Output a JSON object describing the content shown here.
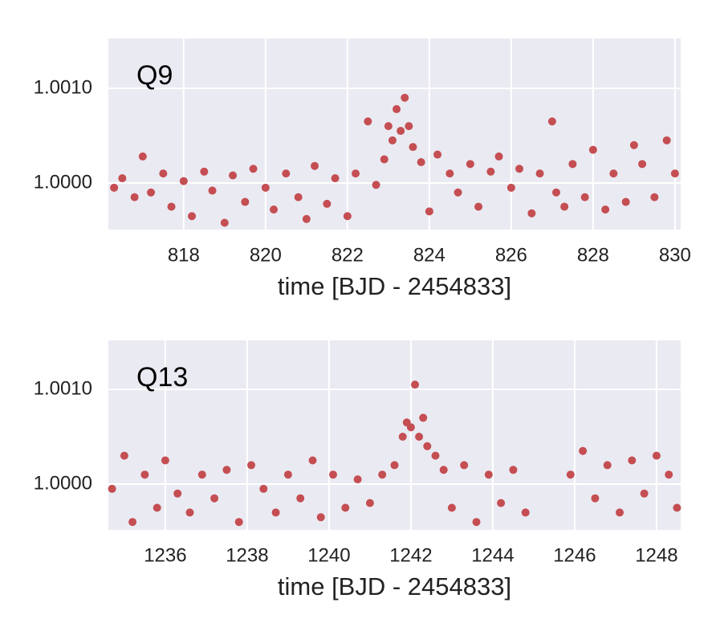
{
  "chart_data": [
    {
      "type": "scatter",
      "annotation": "Q9",
      "xlabel": "time [BJD - 2454833]",
      "color": "#c44e52",
      "grid": true,
      "xlim": [
        816.16,
        830.14
      ],
      "ylim": [
        0.999508,
        1.001525
      ],
      "xticks": [
        818,
        820,
        822,
        824,
        826,
        828,
        830
      ],
      "yticks": [
        {
          "value": 1.0,
          "label": "1.0000"
        },
        {
          "value": 1.001,
          "label": "1.0010"
        }
      ],
      "x": [
        816.3,
        816.5,
        816.8,
        817.0,
        817.2,
        817.5,
        817.7,
        818.0,
        818.2,
        818.5,
        818.7,
        819.0,
        819.2,
        819.5,
        819.7,
        820.0,
        820.2,
        820.5,
        820.8,
        821.0,
        821.2,
        821.5,
        821.7,
        822.0,
        822.2,
        822.5,
        822.7,
        822.9,
        823.0,
        823.1,
        823.2,
        823.3,
        823.4,
        823.5,
        823.6,
        823.8,
        824.0,
        824.2,
        824.5,
        824.7,
        825.0,
        825.2,
        825.5,
        825.7,
        826.0,
        826.2,
        826.5,
        826.7,
        827.0,
        827.1,
        827.3,
        827.5,
        827.8,
        828.0,
        828.3,
        828.5,
        828.8,
        829.0,
        829.2,
        829.5,
        829.8,
        830.0
      ],
      "values": [
        0.99995,
        1.00005,
        0.99985,
        1.00028,
        0.9999,
        1.0001,
        0.99975,
        1.00002,
        0.99965,
        1.00012,
        0.99992,
        0.99958,
        1.00008,
        0.9998,
        1.00015,
        0.99995,
        0.99972,
        1.0001,
        0.99985,
        0.99962,
        1.00018,
        0.99978,
        1.00005,
        0.99965,
        1.0001,
        1.00065,
        0.99998,
        1.00025,
        1.0006,
        1.00045,
        1.00078,
        1.00055,
        1.0009,
        1.0006,
        1.00038,
        1.00022,
        0.9997,
        1.0003,
        1.0001,
        0.9999,
        1.0002,
        0.99975,
        1.00012,
        1.00028,
        0.99995,
        1.00015,
        0.99968,
        1.0001,
        1.00065,
        0.9999,
        0.99975,
        1.0002,
        0.99985,
        1.00035,
        0.99972,
        1.0001,
        0.9998,
        1.0004,
        1.0002,
        0.99985,
        1.00045,
        1.0001
      ]
    },
    {
      "type": "scatter",
      "annotation": "Q13",
      "xlabel": "time [BJD - 2454833]",
      "color": "#c44e52",
      "grid": true,
      "xlim": [
        1234.61,
        1248.59
      ],
      "ylim": [
        0.999517,
        1.001517
      ],
      "xticks": [
        1236,
        1238,
        1240,
        1242,
        1244,
        1246,
        1248
      ],
      "yticks": [
        {
          "value": 1.0,
          "label": "1.0000"
        },
        {
          "value": 1.001,
          "label": "1.0010"
        }
      ],
      "x": [
        1234.7,
        1235.0,
        1235.2,
        1235.5,
        1235.8,
        1236.0,
        1236.3,
        1236.6,
        1236.9,
        1237.2,
        1237.5,
        1237.8,
        1238.1,
        1238.4,
        1238.7,
        1239.0,
        1239.3,
        1239.6,
        1239.8,
        1240.1,
        1240.4,
        1240.7,
        1241.0,
        1241.3,
        1241.6,
        1241.8,
        1241.9,
        1242.0,
        1242.1,
        1242.2,
        1242.3,
        1242.4,
        1242.6,
        1242.8,
        1243.0,
        1243.3,
        1243.6,
        1243.9,
        1244.2,
        1244.5,
        1244.8,
        1245.9,
        1246.2,
        1246.5,
        1246.8,
        1247.1,
        1247.4,
        1247.7,
        1248.0,
        1248.3,
        1248.5
      ],
      "values": [
        0.99995,
        1.0003,
        0.9996,
        1.0001,
        0.99975,
        1.00025,
        0.9999,
        0.9997,
        1.0001,
        0.99985,
        1.00015,
        0.9996,
        1.0002,
        0.99995,
        0.9997,
        1.0001,
        0.99985,
        1.00025,
        0.99965,
        1.0001,
        0.99975,
        1.00005,
        0.9998,
        1.0001,
        1.0002,
        1.0005,
        1.00065,
        1.0006,
        1.00105,
        1.0005,
        1.0007,
        1.0004,
        1.0003,
        1.00015,
        0.99975,
        1.0002,
        0.9996,
        1.0001,
        0.9998,
        1.00015,
        0.9997,
        1.0001,
        1.00035,
        0.99985,
        1.0002,
        0.9997,
        1.00025,
        0.9999,
        1.0003,
        1.0001,
        0.99975
      ]
    }
  ]
}
